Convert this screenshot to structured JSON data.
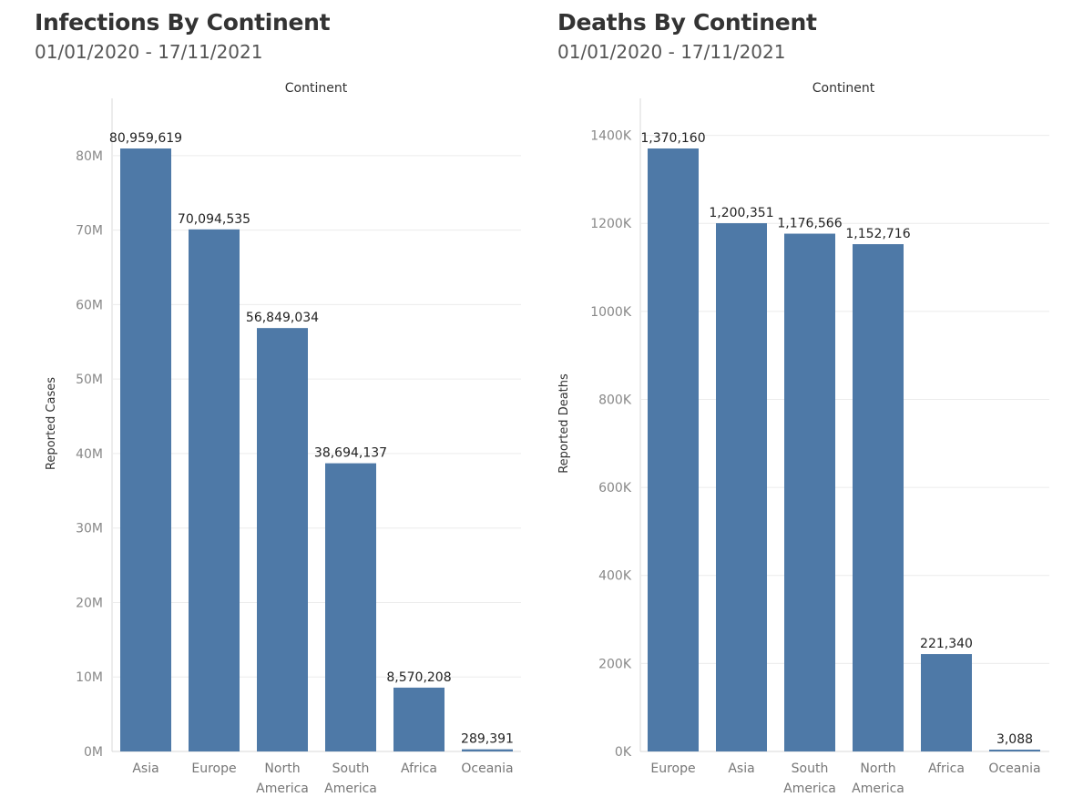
{
  "colors": {
    "bar": "#4e79a7",
    "grid": "#ececec",
    "axis": "#d9d9d9"
  },
  "panels": [
    {
      "title": "Infections By Continent",
      "subtitle": "01/01/2020 - 17/11/2021"
    },
    {
      "title": "Deaths By Continent",
      "subtitle": "01/01/2020 - 17/11/2021"
    }
  ],
  "chart_data": [
    {
      "type": "bar",
      "header": "Continent",
      "ylabel": "Reported Cases",
      "ylim": [
        0,
        80959619
      ],
      "yticks": [
        0,
        10000000,
        20000000,
        30000000,
        40000000,
        50000000,
        60000000,
        70000000,
        80000000
      ],
      "ytick_labels": [
        "0M",
        "10M",
        "20M",
        "30M",
        "40M",
        "50M",
        "60M",
        "70M",
        "80M"
      ],
      "categories": [
        [
          "Asia"
        ],
        [
          "Europe"
        ],
        [
          "North",
          "America"
        ],
        [
          "South",
          "America"
        ],
        [
          "Africa"
        ],
        [
          "Oceania"
        ]
      ],
      "values": [
        80959619,
        70094535,
        56849034,
        38694137,
        8570208,
        289391
      ],
      "data_labels": [
        "80,959,619",
        "70,094,535",
        "56,849,034",
        "38,694,137",
        "8,570,208",
        "289,391"
      ],
      "grid": true
    },
    {
      "type": "bar",
      "header": "Continent",
      "ylabel": "Reported Deaths",
      "ylim": [
        0,
        1370160
      ],
      "yticks": [
        0,
        200000,
        400000,
        600000,
        800000,
        1000000,
        1200000,
        1400000
      ],
      "ytick_labels": [
        "0K",
        "200K",
        "400K",
        "600K",
        "800K",
        "1000K",
        "1200K",
        "1400K"
      ],
      "categories": [
        [
          "Europe"
        ],
        [
          "Asia"
        ],
        [
          "South",
          "America"
        ],
        [
          "North",
          "America"
        ],
        [
          "Africa"
        ],
        [
          "Oceania"
        ]
      ],
      "values": [
        1370160,
        1200351,
        1176566,
        1152716,
        221340,
        3088
      ],
      "data_labels": [
        "1,370,160",
        "1,200,351",
        "1,176,566",
        "1,152,716",
        "221,340",
        "3,088"
      ],
      "grid": true
    }
  ]
}
